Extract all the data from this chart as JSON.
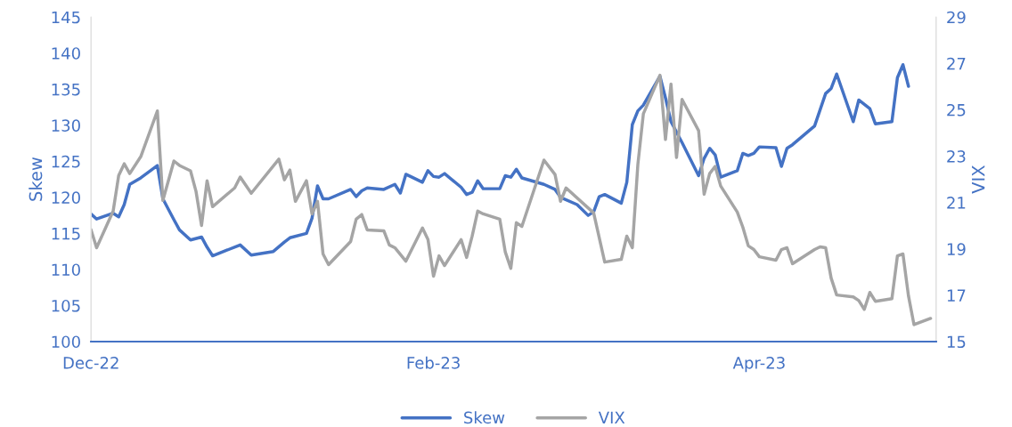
{
  "chart_data": {
    "type": "line",
    "ylabel": "Skew",
    "y2label": "VIX",
    "xlim": [
      "2022-12-01",
      "2023-05-03"
    ],
    "xticks": [
      {
        "value": "2022-12-01",
        "label": "Dec-22"
      },
      {
        "value": "2023-02-01",
        "label": "Feb-23"
      },
      {
        "value": "2023-04-01",
        "label": "Apr-23"
      }
    ],
    "ylim": [
      100,
      145
    ],
    "yticks": [
      100,
      105,
      110,
      115,
      120,
      125,
      130,
      135,
      140,
      145
    ],
    "y2lim": [
      15,
      29
    ],
    "y2ticks": [
      15,
      17,
      19,
      21,
      23,
      25,
      27,
      29
    ],
    "legend": "bottom",
    "grid": false,
    "marker": "none",
    "line_style": "solid",
    "series": [
      {
        "name": "Skew",
        "color": "#4472c4",
        "x": [
          "2022-12-01",
          "2022-12-02",
          "2022-12-05",
          "2022-12-06",
          "2022-12-07",
          "2022-12-08",
          "2022-12-10",
          "2022-12-13",
          "2022-12-14",
          "2022-12-16",
          "2022-12-17",
          "2022-12-19",
          "2022-12-21",
          "2022-12-22",
          "2022-12-23",
          "2022-12-28",
          "2022-12-30",
          "2023-01-03",
          "2023-01-05",
          "2023-01-06",
          "2023-01-09",
          "2023-01-10",
          "2023-01-11",
          "2023-01-12",
          "2023-01-13",
          "2023-01-17",
          "2023-01-18",
          "2023-01-19",
          "2023-01-20",
          "2023-01-23",
          "2023-01-25",
          "2023-01-26",
          "2023-01-27",
          "2023-01-30",
          "2023-01-31",
          "2023-02-01",
          "2023-02-02",
          "2023-02-03",
          "2023-02-06",
          "2023-02-07",
          "2023-02-08",
          "2023-02-09",
          "2023-02-10",
          "2023-02-13",
          "2023-02-14",
          "2023-02-15",
          "2023-02-16",
          "2023-02-17",
          "2023-02-21",
          "2023-02-23",
          "2023-02-24",
          "2023-02-27",
          "2023-03-01",
          "2023-03-02",
          "2023-03-03",
          "2023-03-04",
          "2023-03-07",
          "2023-03-08",
          "2023-03-09",
          "2023-03-10",
          "2023-03-11",
          "2023-03-14",
          "2023-03-15",
          "2023-03-16",
          "2023-03-18",
          "2023-03-21",
          "2023-03-22",
          "2023-03-23",
          "2023-03-24",
          "2023-03-25",
          "2023-03-28",
          "2023-03-29",
          "2023-03-30",
          "2023-03-31",
          "2023-04-01",
          "2023-04-04",
          "2023-04-05",
          "2023-04-06",
          "2023-04-07",
          "2023-04-11",
          "2023-04-13",
          "2023-04-14",
          "2023-04-15",
          "2023-04-18",
          "2023-04-19",
          "2023-04-21",
          "2023-04-22",
          "2023-04-25",
          "2023-04-26",
          "2023-04-27",
          "2023-04-28"
        ],
        "values": [
          117.7,
          117.0,
          117.8,
          117.3,
          119.0,
          121.8,
          122.7,
          124.4,
          119.8,
          116.9,
          115.5,
          114.1,
          114.5,
          113.1,
          111.9,
          113.4,
          112.0,
          112.5,
          113.8,
          114.4,
          115.0,
          117.1,
          121.6,
          119.8,
          119.8,
          121.1,
          120.1,
          120.9,
          121.3,
          121.1,
          121.8,
          120.6,
          123.2,
          122.1,
          123.7,
          122.9,
          122.8,
          123.3,
          121.4,
          120.4,
          120.7,
          122.3,
          121.2,
          121.2,
          123.0,
          122.8,
          123.9,
          122.7,
          121.8,
          121.1,
          120.0,
          119.0,
          117.5,
          118.0,
          120.1,
          120.4,
          119.2,
          122.1,
          130.1,
          132.0,
          132.8,
          136.8,
          133.8,
          130.5,
          127.6,
          123.0,
          125.4,
          126.8,
          125.9,
          122.8,
          123.7,
          126.1,
          125.8,
          126.1,
          127.0,
          126.9,
          124.3,
          126.8,
          127.3,
          129.9,
          134.4,
          135.1,
          137.1,
          130.5,
          133.5,
          132.3,
          130.2,
          130.5,
          136.6,
          138.4,
          135.4
        ]
      },
      {
        "name": "VIX",
        "color": "#a5a5a5",
        "axis": "y2",
        "x": [
          "2022-12-01",
          "2022-12-02",
          "2022-12-05",
          "2022-12-06",
          "2022-12-07",
          "2022-12-08",
          "2022-12-10",
          "2022-12-13",
          "2022-12-14",
          "2022-12-16",
          "2022-12-17",
          "2022-12-19",
          "2022-12-20",
          "2022-12-21",
          "2022-12-22",
          "2022-12-23",
          "2022-12-27",
          "2022-12-28",
          "2022-12-30",
          "2023-01-04",
          "2023-01-05",
          "2023-01-06",
          "2023-01-07",
          "2023-01-09",
          "2023-01-10",
          "2023-01-11",
          "2023-01-12",
          "2023-01-13",
          "2023-01-17",
          "2023-01-18",
          "2023-01-19",
          "2023-01-20",
          "2023-01-23",
          "2023-01-24",
          "2023-01-25",
          "2023-01-27",
          "2023-01-30",
          "2023-01-31",
          "2023-02-01",
          "2023-02-02",
          "2023-02-03",
          "2023-02-06",
          "2023-02-07",
          "2023-02-08",
          "2023-02-09",
          "2023-02-10",
          "2023-02-13",
          "2023-02-14",
          "2023-02-15",
          "2023-02-16",
          "2023-02-17",
          "2023-02-21",
          "2023-02-23",
          "2023-02-24",
          "2023-02-25",
          "2023-03-02",
          "2023-03-04",
          "2023-03-07",
          "2023-03-08",
          "2023-03-09",
          "2023-03-10",
          "2023-03-11",
          "2023-03-14",
          "2023-03-15",
          "2023-03-16",
          "2023-03-17",
          "2023-03-18",
          "2023-03-21",
          "2023-03-22",
          "2023-03-23",
          "2023-03-24",
          "2023-03-25",
          "2023-03-28",
          "2023-03-29",
          "2023-03-30",
          "2023-03-31",
          "2023-04-01",
          "2023-04-04",
          "2023-04-05",
          "2023-04-06",
          "2023-04-07",
          "2023-04-11",
          "2023-04-12",
          "2023-04-13",
          "2023-04-14",
          "2023-04-15",
          "2023-04-18",
          "2023-04-19",
          "2023-04-20",
          "2023-04-21",
          "2023-04-22",
          "2023-04-25",
          "2023-04-26",
          "2023-04-27",
          "2023-04-28",
          "2023-04-29",
          "2023-05-02"
        ],
        "values": [
          19.82,
          19.05,
          20.63,
          22.17,
          22.67,
          22.25,
          22.98,
          24.95,
          21.09,
          22.79,
          22.6,
          22.37,
          21.48,
          20.01,
          21.94,
          20.82,
          21.63,
          22.1,
          21.4,
          22.87,
          21.98,
          22.4,
          21.05,
          21.94,
          20.51,
          21.05,
          18.78,
          18.32,
          19.32,
          20.28,
          20.48,
          19.82,
          19.78,
          19.17,
          19.05,
          18.47,
          19.9,
          19.4,
          17.82,
          18.7,
          18.28,
          19.4,
          18.63,
          19.55,
          20.63,
          20.51,
          20.28,
          18.86,
          18.16,
          20.13,
          19.97,
          22.83,
          22.21,
          21.05,
          21.63,
          20.55,
          18.43,
          18.55,
          19.55,
          19.05,
          22.64,
          24.83,
          26.49,
          23.72,
          26.11,
          22.94,
          25.45,
          24.1,
          21.36,
          22.25,
          22.56,
          21.71,
          20.59,
          19.94,
          19.13,
          18.97,
          18.66,
          18.51,
          18.97,
          19.05,
          18.36,
          18.97,
          19.09,
          19.05,
          17.74,
          17.01,
          16.93,
          16.77,
          16.39,
          17.12,
          16.74,
          16.85,
          18.7,
          18.78,
          16.97,
          15.73,
          16.0
        ]
      }
    ]
  }
}
